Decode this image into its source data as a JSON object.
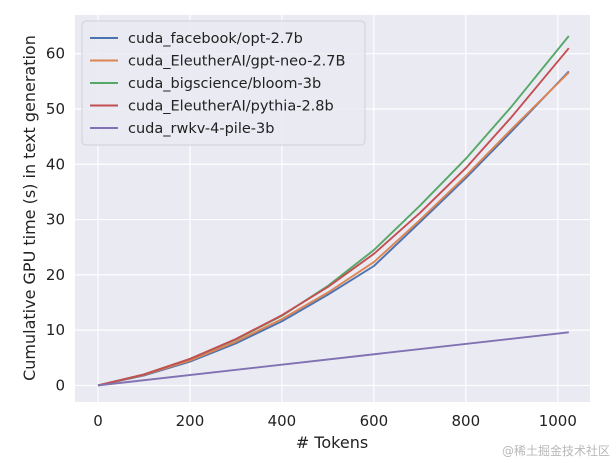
{
  "chart_data": {
    "type": "line",
    "title": "",
    "xlabel": "# Tokens",
    "ylabel": "Cumulative GPU time (s) in text generation",
    "xlim": [
      -50,
      1070
    ],
    "ylim": [
      -3,
      67
    ],
    "xticks": [
      0,
      200,
      400,
      600,
      800,
      1000
    ],
    "yticks": [
      0,
      10,
      20,
      30,
      40,
      50,
      60
    ],
    "grid": true,
    "legend": "top-left",
    "series": [
      {
        "name": "cuda_facebook/opt-2.7b",
        "color": "#4c72b0",
        "x": [
          0,
          100,
          200,
          300,
          400,
          500,
          600,
          700,
          800,
          900,
          1024
        ],
        "y": [
          0,
          1.8,
          4.3,
          7.6,
          11.6,
          16.4,
          21.6,
          29.5,
          37.5,
          46.0,
          56.8
        ]
      },
      {
        "name": "cuda_EleutherAI/gpt-neo-2.7B",
        "color": "#dd8452",
        "x": [
          0,
          100,
          200,
          300,
          400,
          500,
          600,
          700,
          800,
          900,
          1024
        ],
        "y": [
          0,
          1.9,
          4.5,
          7.9,
          12.0,
          16.8,
          22.3,
          29.9,
          37.9,
          46.4,
          56.6
        ]
      },
      {
        "name": "cuda_bigscience/bloom-3b",
        "color": "#55a868",
        "x": [
          0,
          100,
          200,
          300,
          400,
          500,
          600,
          700,
          800,
          900,
          1024
        ],
        "y": [
          0,
          2.0,
          4.8,
          8.3,
          12.6,
          18.0,
          24.5,
          32.5,
          41.0,
          50.5,
          63.2
        ]
      },
      {
        "name": "cuda_EleutherAI/pythia-2.8b",
        "color": "#c44e52",
        "x": [
          0,
          100,
          200,
          300,
          400,
          500,
          600,
          700,
          800,
          900,
          1024
        ],
        "y": [
          0,
          2.0,
          4.8,
          8.4,
          12.7,
          17.8,
          23.8,
          31.2,
          39.3,
          48.6,
          61.0
        ]
      },
      {
        "name": "cuda_rwkv-4-pile-3b",
        "color": "#8172b3",
        "x": [
          0,
          1024
        ],
        "y": [
          0,
          9.6
        ]
      }
    ]
  },
  "watermark": "@稀土掘金技术社区"
}
